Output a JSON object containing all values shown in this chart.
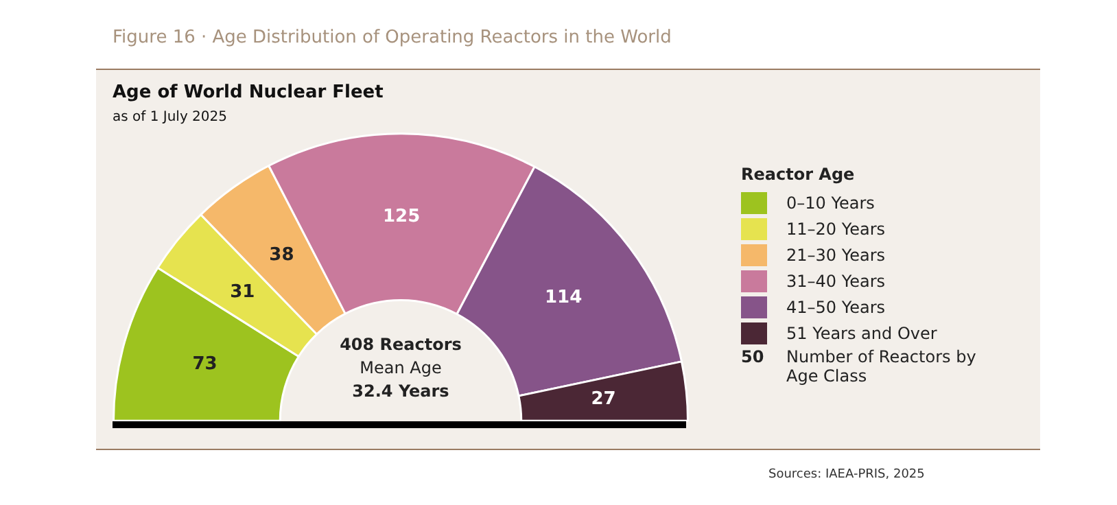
{
  "chart_data": {
    "type": "donut",
    "title": "Age of World Nuclear Fleet",
    "subtitle": "as of 1 July 2025",
    "legend_title": "Reactor Age",
    "legend": "right",
    "data_labels": true,
    "categories": [
      "0–10 Years",
      "11–20 Years",
      "21–30 Years",
      "31–40 Years",
      "41–50 Years",
      "51 Years and Over"
    ],
    "values": [
      73,
      31,
      38,
      125,
      114,
      27
    ],
    "colors": [
      "#9dc31f",
      "#e6e34f",
      "#f5b86a",
      "#c97a9c",
      "#865489",
      "#4b2735"
    ],
    "annotations": [
      "Figure 16 · Age Distribution of Operating Reactors in the World",
      "408 Reactors",
      "Mean Age",
      "32.4 Years",
      "50",
      "Number of Reactors by Age Class",
      "Sources: IAEA-PRIS, 2025"
    ]
  }
}
